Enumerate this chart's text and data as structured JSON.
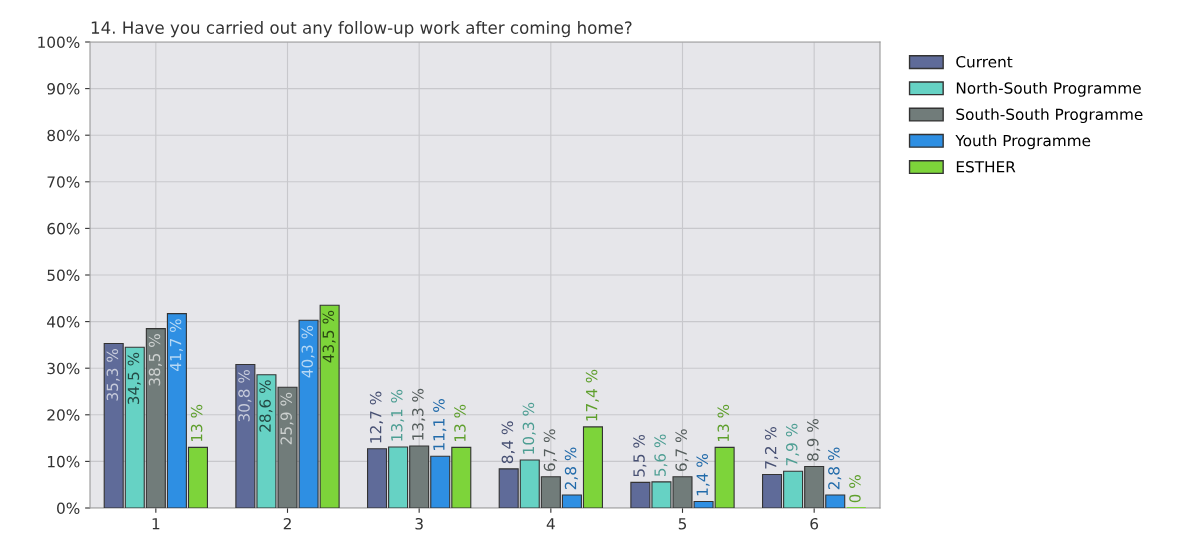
{
  "chart_data": {
    "type": "bar",
    "title": "14. Have you carried out any follow-up work after coming home?",
    "categories": [
      "1",
      "2",
      "3",
      "4",
      "5",
      "6"
    ],
    "series": [
      {
        "name": "Current",
        "color": "#5f6b99",
        "values": [
          35.3,
          30.8,
          12.7,
          8.4,
          5.5,
          7.2
        ],
        "value_labels": [
          "35,3 %",
          "30,8 %",
          "12,7 %",
          "8,4 %",
          "5,5 %",
          "7,2 %"
        ]
      },
      {
        "name": "North-South Programme",
        "color": "#66d2c4",
        "values": [
          34.5,
          28.6,
          13.1,
          10.3,
          5.6,
          7.9
        ],
        "value_labels": [
          "34,5 %",
          "28,6 %",
          "13,1 %",
          "10,3 %",
          "5,6 %",
          "7,9 %"
        ]
      },
      {
        "name": "South-South Programme",
        "color": "#717c7a",
        "values": [
          38.5,
          25.9,
          13.3,
          6.7,
          6.7,
          8.9
        ],
        "value_labels": [
          "38,5 %",
          "25,9 %",
          "13,3 %",
          "6,7 %",
          "6,7 %",
          "8,9 %"
        ]
      },
      {
        "name": "Youth Programme",
        "color": "#2e8fe3",
        "values": [
          41.7,
          40.3,
          11.1,
          2.8,
          1.4,
          2.8
        ],
        "value_labels": [
          "41,7 %",
          "40,3 %",
          "11,1 %",
          "2,8 %",
          "1,4 %",
          "2,8 %"
        ]
      },
      {
        "name": "ESTHER",
        "color": "#7dd43a",
        "values": [
          13,
          43.5,
          13,
          17.4,
          13,
          0
        ],
        "value_labels": [
          "13 %",
          "43,5 %",
          "13 %",
          "17,4 %",
          "13 %",
          "0 %"
        ]
      }
    ],
    "ylim": [
      0,
      100
    ],
    "yticks": [
      {
        "value": 0,
        "label": "0%"
      },
      {
        "value": 10,
        "label": "10%"
      },
      {
        "value": 20,
        "label": "20%"
      },
      {
        "value": 30,
        "label": "30%"
      },
      {
        "value": 40,
        "label": "40%"
      },
      {
        "value": 50,
        "label": "50%"
      },
      {
        "value": 60,
        "label": "60%"
      },
      {
        "value": 70,
        "label": "70%"
      },
      {
        "value": 80,
        "label": "80%"
      },
      {
        "value": 90,
        "label": "90%"
      },
      {
        "value": 100,
        "label": "100%"
      }
    ],
    "grid": true,
    "legend": "top right"
  }
}
